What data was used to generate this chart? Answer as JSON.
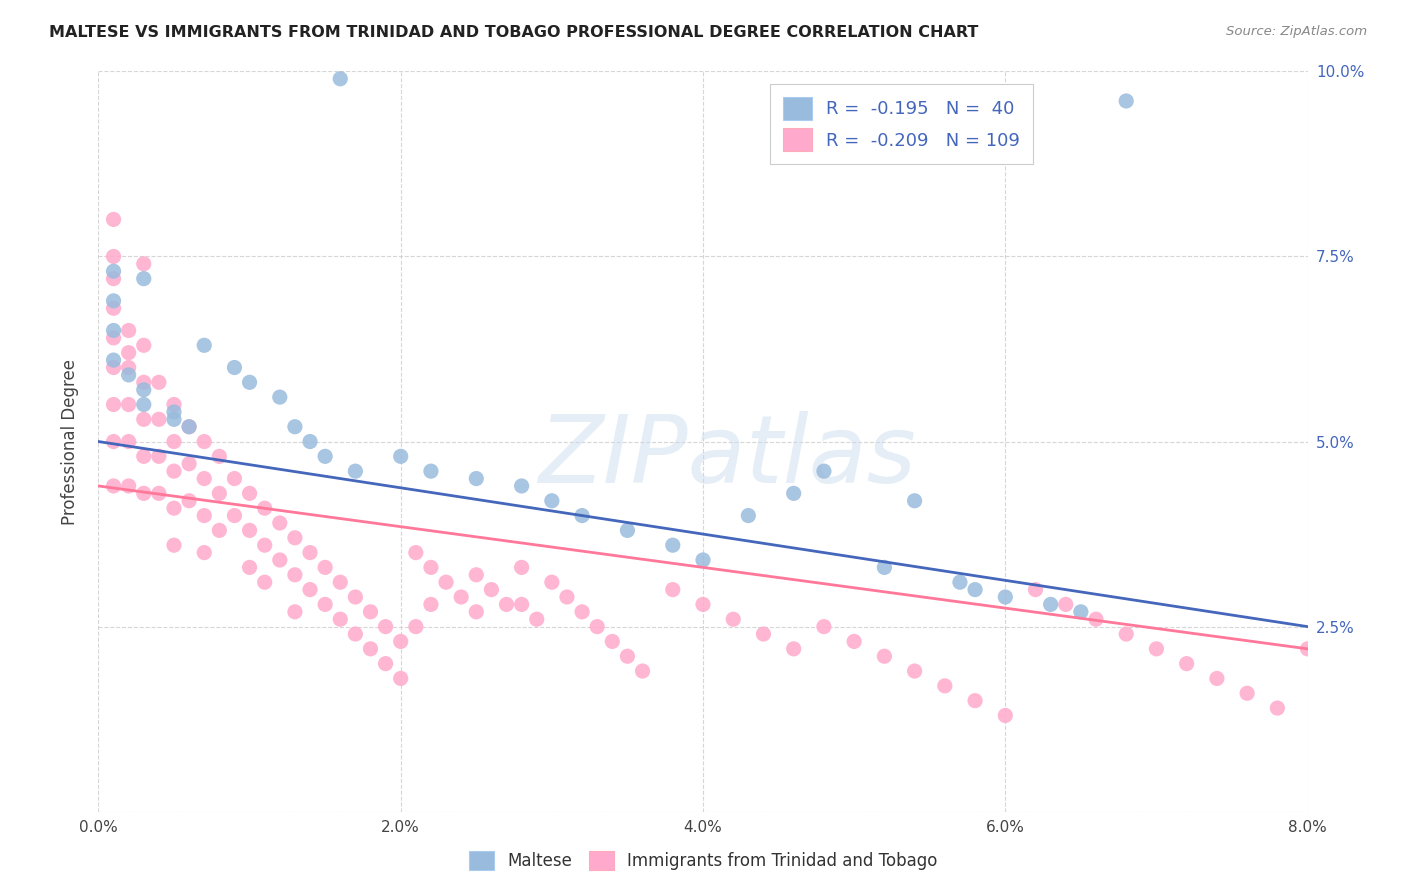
{
  "title": "MALTESE VS IMMIGRANTS FROM TRINIDAD AND TOBAGO PROFESSIONAL DEGREE CORRELATION CHART",
  "source": "Source: ZipAtlas.com",
  "ylabel": "Professional Degree",
  "xlim": [
    0.0,
    0.08
  ],
  "ylim": [
    0.0,
    0.1
  ],
  "x_ticks": [
    0.0,
    0.02,
    0.04,
    0.06,
    0.08
  ],
  "y_ticks": [
    0.0,
    0.025,
    0.05,
    0.075,
    0.1
  ],
  "x_tick_labels": [
    "0.0%",
    "2.0%",
    "4.0%",
    "6.0%",
    "8.0%"
  ],
  "y_tick_labels_right": [
    "",
    "2.5%",
    "5.0%",
    "7.5%",
    "10.0%"
  ],
  "blue_R": -0.195,
  "blue_N": 40,
  "pink_R": -0.209,
  "pink_N": 109,
  "blue_scatter_color": "#99BBDD",
  "pink_scatter_color": "#FFAACC",
  "blue_line_color": "#4466BB",
  "pink_line_color": "#FF7799",
  "right_axis_color": "#4466BB",
  "watermark_text": "ZIPatlas",
  "legend_blue_label": "Maltese",
  "legend_pink_label": "Immigrants from Trinidad and Tobago",
  "background_color": "#FFFFFF",
  "grid_color": "#CCCCCC",
  "title_color": "#222222",
  "source_color": "#888888",
  "blue_line_start_y": 0.05,
  "blue_line_end_y": 0.025,
  "pink_line_start_y": 0.044,
  "pink_line_end_y": 0.022,
  "blue_x": [
    0.001,
    0.003,
    0.016,
    0.001,
    0.001,
    0.001,
    0.002,
    0.003,
    0.003,
    0.005,
    0.005,
    0.006,
    0.007,
    0.009,
    0.01,
    0.012,
    0.013,
    0.014,
    0.015,
    0.017,
    0.02,
    0.022,
    0.025,
    0.028,
    0.03,
    0.032,
    0.035,
    0.038,
    0.04,
    0.043,
    0.046,
    0.048,
    0.052,
    0.054,
    0.057,
    0.058,
    0.06,
    0.063,
    0.065,
    0.068
  ],
  "blue_y": [
    0.073,
    0.072,
    0.099,
    0.069,
    0.065,
    0.061,
    0.059,
    0.057,
    0.055,
    0.054,
    0.053,
    0.052,
    0.063,
    0.06,
    0.058,
    0.056,
    0.052,
    0.05,
    0.048,
    0.046,
    0.048,
    0.046,
    0.045,
    0.044,
    0.042,
    0.04,
    0.038,
    0.036,
    0.034,
    0.04,
    0.043,
    0.046,
    0.033,
    0.042,
    0.031,
    0.03,
    0.029,
    0.028,
    0.027,
    0.096
  ],
  "pink_x": [
    0.001,
    0.001,
    0.001,
    0.001,
    0.001,
    0.001,
    0.001,
    0.002,
    0.002,
    0.002,
    0.002,
    0.002,
    0.003,
    0.003,
    0.003,
    0.003,
    0.003,
    0.004,
    0.004,
    0.004,
    0.004,
    0.005,
    0.005,
    0.005,
    0.005,
    0.005,
    0.006,
    0.006,
    0.006,
    0.007,
    0.007,
    0.007,
    0.007,
    0.008,
    0.008,
    0.008,
    0.009,
    0.009,
    0.01,
    0.01,
    0.01,
    0.011,
    0.011,
    0.011,
    0.012,
    0.012,
    0.013,
    0.013,
    0.013,
    0.014,
    0.014,
    0.015,
    0.015,
    0.016,
    0.016,
    0.017,
    0.017,
    0.018,
    0.018,
    0.019,
    0.019,
    0.02,
    0.02,
    0.021,
    0.021,
    0.022,
    0.022,
    0.023,
    0.024,
    0.025,
    0.025,
    0.026,
    0.027,
    0.028,
    0.028,
    0.029,
    0.03,
    0.031,
    0.032,
    0.033,
    0.034,
    0.035,
    0.036,
    0.038,
    0.04,
    0.042,
    0.044,
    0.046,
    0.048,
    0.05,
    0.052,
    0.054,
    0.056,
    0.058,
    0.06,
    0.062,
    0.064,
    0.066,
    0.068,
    0.07,
    0.072,
    0.074,
    0.076,
    0.078,
    0.08,
    0.003,
    0.001,
    0.002,
    0.001
  ],
  "pink_y": [
    0.072,
    0.068,
    0.064,
    0.06,
    0.055,
    0.05,
    0.044,
    0.065,
    0.06,
    0.055,
    0.05,
    0.044,
    0.063,
    0.058,
    0.053,
    0.048,
    0.043,
    0.058,
    0.053,
    0.048,
    0.043,
    0.055,
    0.05,
    0.046,
    0.041,
    0.036,
    0.052,
    0.047,
    0.042,
    0.05,
    0.045,
    0.04,
    0.035,
    0.048,
    0.043,
    0.038,
    0.045,
    0.04,
    0.043,
    0.038,
    0.033,
    0.041,
    0.036,
    0.031,
    0.039,
    0.034,
    0.037,
    0.032,
    0.027,
    0.035,
    0.03,
    0.033,
    0.028,
    0.031,
    0.026,
    0.029,
    0.024,
    0.027,
    0.022,
    0.025,
    0.02,
    0.023,
    0.018,
    0.035,
    0.025,
    0.033,
    0.028,
    0.031,
    0.029,
    0.032,
    0.027,
    0.03,
    0.028,
    0.033,
    0.028,
    0.026,
    0.031,
    0.029,
    0.027,
    0.025,
    0.023,
    0.021,
    0.019,
    0.03,
    0.028,
    0.026,
    0.024,
    0.022,
    0.025,
    0.023,
    0.021,
    0.019,
    0.017,
    0.015,
    0.013,
    0.03,
    0.028,
    0.026,
    0.024,
    0.022,
    0.02,
    0.018,
    0.016,
    0.014,
    0.022,
    0.074,
    0.075,
    0.062,
    0.08
  ]
}
